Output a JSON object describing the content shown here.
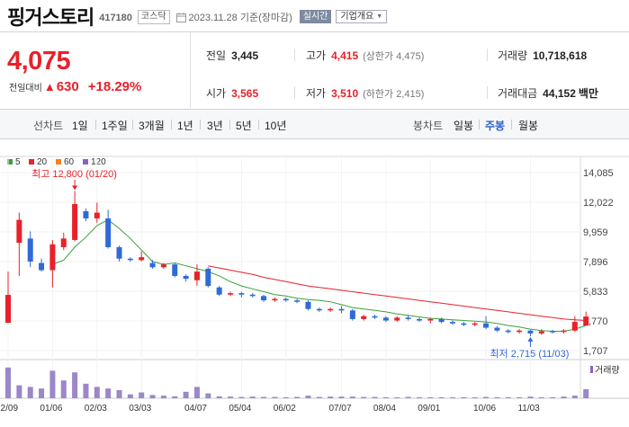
{
  "header": {
    "stock_name": "핑거스토리",
    "stock_code": "417180",
    "market": "코스닥",
    "date_text": "2023.11.28 기준(장마감)",
    "realtime_label": "실시간",
    "company_overview_label": "기업개요"
  },
  "quote": {
    "price": "4,075",
    "change_label": "전일대비",
    "change_symbol": "▲",
    "change_value": "630",
    "change_rate": "+18.29%",
    "prev_label": "전일",
    "prev_value": "3,445",
    "high_label": "고가",
    "high_value": "4,415",
    "upper_limit": "(상한가 4,475)",
    "volume_label": "거래량",
    "volume_value": "10,718,618",
    "open_label": "시가",
    "open_value": "3,565",
    "low_label": "저가",
    "low_value": "3,510",
    "lower_limit": "(하한가 2,415)",
    "amount_label": "거래대금",
    "amount_value": "44,152",
    "amount_unit": "백만"
  },
  "period_bar": {
    "line_chart_label": "선차트",
    "line_periods": [
      "1일",
      "1주일",
      "3개월",
      "1년",
      "3년",
      "5년",
      "10년"
    ],
    "candle_chart_label": "봉차트",
    "candle_periods": [
      "일봉",
      "주봉",
      "월봉"
    ],
    "active_candle": "주봉"
  },
  "chart_data": {
    "type": "candlestick",
    "legend": [
      {
        "name": "5",
        "color": "#3aa13a"
      },
      {
        "name": "20",
        "color": "#e8212b"
      },
      {
        "name": "60",
        "color": "#f58220"
      },
      {
        "name": "120",
        "color": "#8e5fc7"
      }
    ],
    "y_ticks": [
      14085,
      12022,
      9959,
      7896,
      5833,
      3770,
      1707
    ],
    "x_labels": [
      {
        "label": "12/09",
        "i": 0
      },
      {
        "label": "01/06",
        "i": 4
      },
      {
        "label": "02/03",
        "i": 8
      },
      {
        "label": "03/03",
        "i": 12
      },
      {
        "label": "04/07",
        "i": 17
      },
      {
        "label": "05/04",
        "i": 21
      },
      {
        "label": "06/02",
        "i": 25
      },
      {
        "label": "07/07",
        "i": 30
      },
      {
        "label": "08/04",
        "i": 34
      },
      {
        "label": "09/01",
        "i": 38
      },
      {
        "label": "10/06",
        "i": 43
      },
      {
        "label": "11/03",
        "i": 47
      }
    ],
    "high_label": "최고 12,800 (01/20)",
    "high_index": 6,
    "low_label": "최저 2,715 (11/03)",
    "low_index": 47,
    "volume_label": "거래량",
    "candles": [
      [
        3640,
        5580,
        3620,
        7200
      ],
      [
        9200,
        10800,
        6900,
        11300
      ],
      [
        9500,
        7900,
        7500,
        10000
      ],
      [
        7800,
        7300,
        7200,
        8100
      ],
      [
        7300,
        9100,
        6100,
        9400
      ],
      [
        8900,
        9500,
        8700,
        9900
      ],
      [
        9400,
        11900,
        9300,
        12800
      ],
      [
        11400,
        10900,
        10700,
        11600
      ],
      [
        10900,
        11300,
        10600,
        12000
      ],
      [
        10900,
        8900,
        8800,
        11500
      ],
      [
        8900,
        8100,
        7900,
        9000
      ],
      [
        8100,
        8000,
        7900,
        8200
      ],
      [
        8000,
        8200,
        7900,
        8600
      ],
      [
        7800,
        7500,
        7400,
        8000
      ],
      [
        7500,
        7700,
        7400,
        7800
      ],
      [
        7700,
        6900,
        6800,
        7800
      ],
      [
        6900,
        6700,
        6500,
        7000
      ],
      [
        6600,
        7200,
        6200,
        7700
      ],
      [
        7400,
        6200,
        6100,
        7500
      ],
      [
        6100,
        5600,
        5500,
        6200
      ],
      [
        5600,
        5700,
        5500,
        5800
      ],
      [
        5700,
        5600,
        5400,
        5800
      ],
      [
        5600,
        5500,
        5400,
        5700
      ],
      [
        5500,
        5200,
        5100,
        5600
      ],
      [
        5200,
        5300,
        5100,
        5400
      ],
      [
        5300,
        5200,
        5100,
        5400
      ],
      [
        5200,
        5100,
        5000,
        5300
      ],
      [
        5100,
        4600,
        4500,
        5200
      ],
      [
        4600,
        4500,
        4400,
        4700
      ],
      [
        4500,
        4600,
        4400,
        4700
      ],
      [
        4600,
        4500,
        4300,
        4800
      ],
      [
        4500,
        3900,
        3800,
        4600
      ],
      [
        3900,
        4100,
        3800,
        4200
      ],
      [
        4100,
        4000,
        3900,
        4200
      ],
      [
        4000,
        3800,
        3700,
        4100
      ],
      [
        3800,
        4000,
        3700,
        4100
      ],
      [
        4000,
        3900,
        3800,
        4200
      ],
      [
        3900,
        3800,
        3700,
        4000
      ],
      [
        3800,
        3900,
        3600,
        4000
      ],
      [
        3900,
        3700,
        3600,
        4000
      ],
      [
        3700,
        3600,
        3500,
        3800
      ],
      [
        3600,
        3500,
        3400,
        3700
      ],
      [
        3500,
        3600,
        3400,
        3700
      ],
      [
        3600,
        3300,
        3200,
        4100
      ],
      [
        3300,
        3100,
        3000,
        3400
      ],
      [
        3100,
        3000,
        2900,
        3200
      ],
      [
        3000,
        3100,
        2900,
        3200
      ],
      [
        3100,
        2900,
        2715,
        3150
      ],
      [
        2900,
        3050,
        2800,
        3200
      ],
      [
        3050,
        3000,
        2900,
        3150
      ],
      [
        3000,
        3100,
        2900,
        3200
      ],
      [
        3100,
        3700,
        3000,
        4100
      ],
      [
        3445,
        4075,
        3510,
        4415
      ]
    ],
    "ma5": [
      null,
      null,
      null,
      null,
      7700,
      8000,
      8900,
      9600,
      10400,
      10800,
      10200,
      9500,
      8700,
      7900,
      7700,
      7800,
      7600,
      7400,
      7200,
      6900,
      6500,
      6200,
      6000,
      5800,
      5600,
      5500,
      5350,
      5250,
      5200,
      5100,
      4900,
      4700,
      4600,
      4500,
      4400,
      4250,
      4150,
      4050,
      3950,
      3900,
      3850,
      3800,
      3750,
      3700,
      3600,
      3450,
      3350,
      3200,
      3100,
      3050,
      3050,
      3200,
      3450
    ],
    "ma20": [
      null,
      null,
      null,
      null,
      null,
      null,
      null,
      null,
      null,
      null,
      null,
      null,
      null,
      null,
      null,
      null,
      null,
      null,
      7600,
      7450,
      7300,
      7150,
      7000,
      6800,
      6650,
      6500,
      6350,
      6200,
      6100,
      6000,
      5900,
      5800,
      5700,
      5600,
      5500,
      5400,
      5300,
      5200,
      5100,
      5000,
      4900,
      4800,
      4700,
      4600,
      4500,
      4400,
      4300,
      4200,
      4100,
      4000,
      3900,
      3850,
      3800
    ],
    "volume": [
      0.95,
      0.4,
      0.35,
      0.3,
      0.85,
      0.55,
      0.8,
      0.45,
      0.35,
      0.3,
      0.25,
      0.12,
      0.18,
      0.1,
      0.08,
      0.06,
      0.2,
      0.35,
      0.15,
      0.06,
      0.05,
      0.04,
      0.05,
      0.04,
      0.04,
      0.03,
      0.04,
      0.08,
      0.04,
      0.05,
      0.05,
      0.05,
      0.04,
      0.04,
      0.03,
      0.03,
      0.04,
      0.03,
      0.03,
      0.03,
      0.03,
      0.03,
      0.03,
      0.04,
      0.03,
      0.03,
      0.03,
      0.05,
      0.03,
      0.03,
      0.05,
      0.08,
      0.28
    ]
  }
}
